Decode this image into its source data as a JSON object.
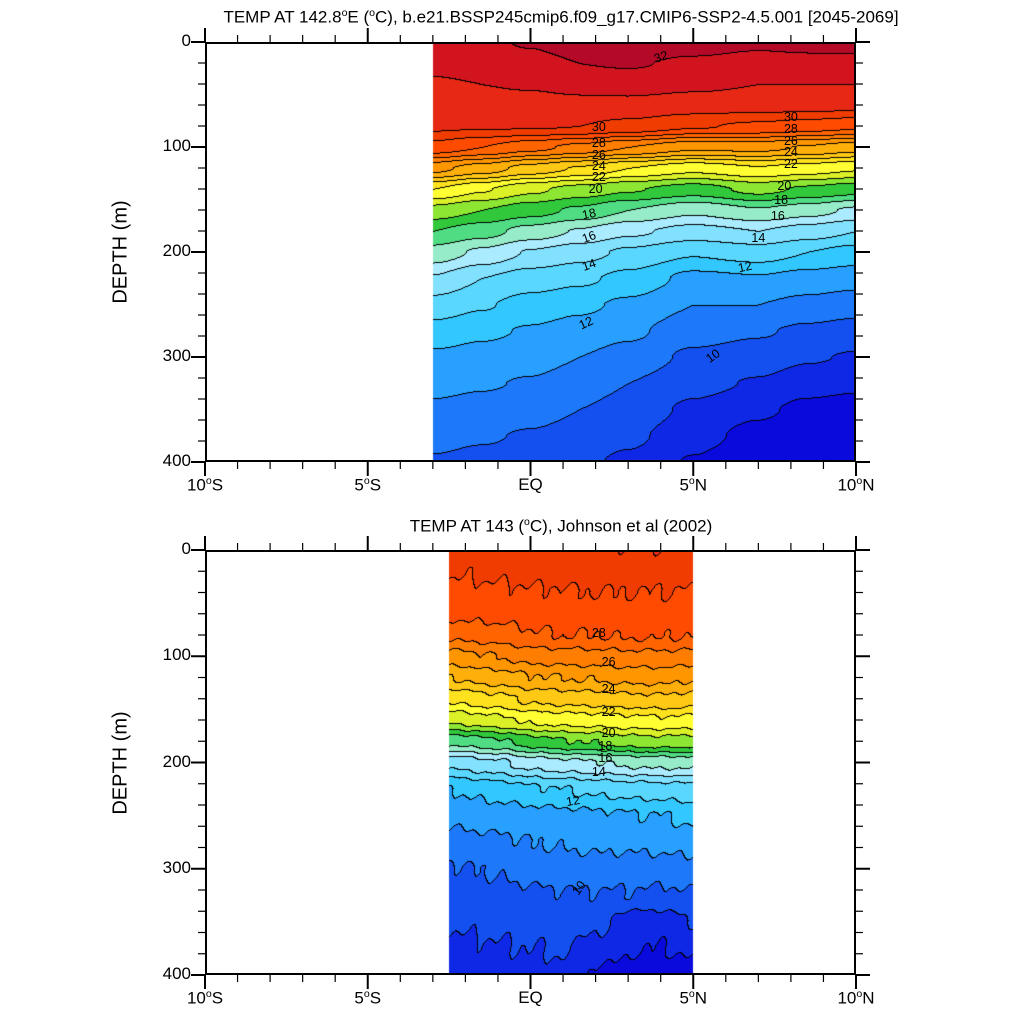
{
  "figure": {
    "background": "#FFFFFF"
  },
  "frame_color": "#000000",
  "contour_line_color": "#000000",
  "colormap": {
    "tmin": 7,
    "band_colors": [
      "#0A0ADC",
      "#0F28E6",
      "#1450F0",
      "#1E78FA",
      "#28A0FF",
      "#32C8FF",
      "#5AD7FF",
      "#82E1FF",
      "#AAEBFF",
      "#96EBC8",
      "#50DC82",
      "#32C83C",
      "#8CE632",
      "#DCF028",
      "#FFFF32",
      "#FFE11E",
      "#FFC814",
      "#FFAF0A",
      "#FF9600",
      "#FF7D00",
      "#FF6400",
      "#FF4B00",
      "#F03C00",
      "#E62814",
      "#D2141E",
      "#B40A28"
    ]
  },
  "chart_data": [
    {
      "type": "filled_contour",
      "title": "TEMP AT 142.8°E (°C), b.e21.BSSP245cmip6.f09_g17.CMIP6-SSP2-4.5.001 [2045-2069]",
      "y_axis_title": "DEPTH (m)",
      "x_axis": {
        "range": [
          -10,
          10
        ],
        "major_tick_values": [
          -10,
          -5,
          0,
          5,
          10
        ],
        "major_tick_labels": [
          "10°S",
          "5°S",
          "EQ",
          "5°N",
          "10°N"
        ],
        "minor_tick_step": 1
      },
      "y_axis": {
        "range": [
          0,
          400
        ],
        "inverted": true,
        "major_tick_values": [
          0,
          100,
          200,
          300,
          400
        ],
        "major_tick_labels": [
          "0",
          "100",
          "200",
          "300",
          "400"
        ],
        "minor_tick_step": 20
      },
      "contour_interval": 1,
      "field": {
        "lats": [
          -3,
          -1.5,
          0,
          1.5,
          3,
          5,
          7,
          8.5,
          10
        ],
        "depths": [
          0,
          20,
          40,
          60,
          80,
          100,
          120,
          140,
          160,
          180,
          200,
          225,
          250,
          275,
          300,
          325,
          350,
          375,
          400
        ],
        "temps": [
          [
            31.6,
            31.8,
            32.1,
            32.6,
            32.8,
            32.5,
            32.2,
            32.3,
            32.4
          ],
          [
            31.2,
            31.4,
            31.6,
            32.0,
            32.1,
            31.8,
            31.6,
            31.7,
            31.7
          ],
          [
            30.9,
            31.0,
            31.1,
            31.3,
            31.4,
            31.2,
            31.0,
            31.0,
            31.0
          ],
          [
            30.5,
            30.5,
            30.6,
            30.7,
            30.7,
            30.5,
            30.4,
            30.4,
            30.3
          ],
          [
            30.2,
            30.1,
            30.1,
            30.0,
            29.7,
            29.1,
            28.8,
            28.5,
            28.2
          ],
          [
            28.6,
            28.0,
            27.3,
            26.7,
            26.0,
            25.2,
            25.3,
            24.9,
            24.4
          ],
          [
            25.3,
            24.5,
            23.6,
            22.9,
            22.0,
            21.3,
            21.9,
            21.5,
            21.1
          ],
          [
            22.0,
            21.1,
            20.2,
            19.6,
            19.1,
            18.5,
            19.3,
            18.8,
            18.4
          ],
          [
            19.6,
            19.0,
            18.4,
            17.8,
            17.0,
            16.2,
            16.9,
            16.4,
            15.8
          ],
          [
            18.0,
            17.4,
            16.6,
            15.9,
            15.2,
            14.6,
            15.0,
            14.5,
            14.0
          ],
          [
            16.6,
            15.8,
            14.9,
            14.4,
            13.8,
            13.1,
            13.5,
            13.0,
            12.6
          ],
          [
            14.9,
            14.0,
            13.5,
            13.2,
            12.7,
            11.7,
            11.9,
            11.6,
            11.4
          ],
          [
            13.6,
            13.1,
            12.6,
            12.2,
            11.8,
            11.0,
            11.0,
            10.7,
            10.4
          ],
          [
            12.6,
            12.2,
            11.9,
            11.6,
            11.2,
            10.4,
            10.1,
            9.8,
            9.6
          ],
          [
            11.8,
            11.6,
            11.4,
            11.0,
            10.6,
            9.8,
            9.5,
            9.1,
            8.9
          ],
          [
            11.3,
            11.1,
            10.9,
            10.5,
            10.0,
            9.3,
            8.9,
            8.4,
            8.2
          ],
          [
            10.8,
            10.6,
            10.4,
            10.0,
            9.6,
            8.8,
            8.2,
            7.7,
            7.5
          ],
          [
            10.3,
            10.1,
            9.9,
            9.6,
            9.2,
            8.4,
            7.6,
            7.0,
            6.8
          ],
          [
            9.9,
            9.7,
            9.5,
            9.2,
            8.8,
            7.9,
            7.0,
            6.3,
            6.1
          ]
        ]
      },
      "contour_labels": [
        {
          "text": "32",
          "lat": 4.0,
          "depth": 14,
          "rot": -18
        },
        {
          "text": "30",
          "lat": 2.1,
          "depth": 81
        },
        {
          "text": "28",
          "lat": 2.1,
          "depth": 96
        },
        {
          "text": "26",
          "lat": 2.1,
          "depth": 108
        },
        {
          "text": "24",
          "lat": 2.1,
          "depth": 118
        },
        {
          "text": "22",
          "lat": 2.1,
          "depth": 129
        },
        {
          "text": "20",
          "lat": 2.0,
          "depth": 140
        },
        {
          "text": "18",
          "lat": 1.8,
          "depth": 164,
          "rot": -12
        },
        {
          "text": "16",
          "lat": 1.8,
          "depth": 186,
          "rot": -20
        },
        {
          "text": "14",
          "lat": 1.8,
          "depth": 212,
          "rot": -20
        },
        {
          "text": "12",
          "lat": 1.7,
          "depth": 268,
          "rot": -25
        },
        {
          "text": "10",
          "lat": 5.6,
          "depth": 299,
          "rot": -35
        },
        {
          "text": "30",
          "lat": 8.0,
          "depth": 71
        },
        {
          "text": "28",
          "lat": 8.0,
          "depth": 83
        },
        {
          "text": "26",
          "lat": 8.0,
          "depth": 94
        },
        {
          "text": "24",
          "lat": 8.0,
          "depth": 105
        },
        {
          "text": "22",
          "lat": 8.0,
          "depth": 116
        },
        {
          "text": "20",
          "lat": 7.8,
          "depth": 137
        },
        {
          "text": "18",
          "lat": 7.7,
          "depth": 150
        },
        {
          "text": "16",
          "lat": 7.6,
          "depth": 166
        },
        {
          "text": "14",
          "lat": 7.0,
          "depth": 187
        },
        {
          "text": "12",
          "lat": 6.6,
          "depth": 214,
          "rot": -12
        }
      ]
    },
    {
      "type": "filled_contour",
      "title": "TEMP AT 143 (°C), Johnson et al (2002)",
      "y_axis_title": "DEPTH (m)",
      "x_axis": {
        "range": [
          -10,
          10
        ],
        "major_tick_values": [
          -10,
          -5,
          0,
          5,
          10
        ],
        "major_tick_labels": [
          "10°S",
          "5°S",
          "EQ",
          "5°N",
          "10°N"
        ],
        "minor_tick_step": 1
      },
      "y_axis": {
        "range": [
          0,
          400
        ],
        "inverted": true,
        "major_tick_values": [
          0,
          100,
          200,
          300,
          400
        ],
        "major_tick_labels": [
          "0",
          "100",
          "200",
          "300",
          "400"
        ],
        "minor_tick_step": 20
      },
      "contour_interval": 1,
      "field": {
        "lats": [
          -2.5,
          -1,
          0,
          1,
          2,
          3,
          4,
          5
        ],
        "depths": [
          0,
          20,
          40,
          60,
          80,
          100,
          120,
          140,
          160,
          180,
          200,
          225,
          250,
          275,
          300,
          325,
          350,
          375,
          400
        ],
        "temps": [
          [
            29.6,
            29.7,
            29.8,
            29.8,
            29.9,
            29.9,
            29.9,
            29.8
          ],
          [
            29.1,
            29.2,
            29.3,
            29.4,
            29.4,
            29.4,
            29.4,
            29.4
          ],
          [
            28.7,
            28.8,
            28.9,
            28.9,
            29.0,
            29.0,
            29.0,
            28.9
          ],
          [
            28.2,
            28.3,
            28.4,
            28.5,
            28.5,
            28.5,
            28.5,
            28.5
          ],
          [
            27.2,
            27.5,
            27.9,
            28.0,
            28.0,
            28.1,
            28.1,
            28.0
          ],
          [
            25.6,
            26.0,
            26.4,
            26.5,
            26.6,
            26.7,
            26.7,
            26.6
          ],
          [
            24.0,
            24.5,
            24.9,
            25.0,
            25.1,
            25.3,
            25.3,
            25.1
          ],
          [
            22.2,
            22.7,
            23.2,
            23.4,
            23.5,
            23.7,
            23.8,
            23.6
          ],
          [
            20.2,
            20.7,
            21.2,
            21.4,
            21.5,
            21.7,
            21.8,
            21.7
          ],
          [
            17.2,
            17.8,
            18.5,
            18.9,
            19.1,
            19.5,
            19.6,
            19.5
          ],
          [
            14.3,
            14.8,
            15.4,
            15.7,
            15.9,
            16.2,
            16.3,
            16.3
          ],
          [
            12.0,
            12.4,
            12.8,
            13.0,
            13.2,
            13.4,
            13.5,
            13.6
          ],
          [
            11.3,
            11.5,
            11.6,
            11.7,
            11.8,
            11.9,
            12.0,
            12.3
          ],
          [
            10.6,
            10.8,
            11.0,
            11.1,
            11.2,
            11.2,
            11.3,
            11.4
          ],
          [
            9.9,
            10.1,
            10.4,
            10.5,
            10.6,
            10.5,
            10.5,
            10.6
          ],
          [
            9.5,
            9.7,
            9.8,
            9.9,
            9.9,
            9.9,
            9.8,
            9.9
          ],
          [
            9.1,
            9.3,
            9.4,
            9.5,
            9.3,
            8.4,
            8.4,
            9.0
          ],
          [
            8.7,
            8.9,
            9.0,
            9.1,
            8.6,
            8.1,
            8.0,
            8.2
          ],
          [
            8.3,
            8.5,
            8.6,
            8.7,
            7.9,
            7.4,
            7.3,
            7.5
          ]
        ]
      },
      "contour_labels": [
        {
          "text": "28",
          "lat": 2.1,
          "depth": 78
        },
        {
          "text": "26",
          "lat": 2.4,
          "depth": 105
        },
        {
          "text": "24",
          "lat": 2.4,
          "depth": 131
        },
        {
          "text": "22",
          "lat": 2.4,
          "depth": 152
        },
        {
          "text": "20",
          "lat": 2.4,
          "depth": 172
        },
        {
          "text": "18",
          "lat": 2.3,
          "depth": 184
        },
        {
          "text": "16",
          "lat": 2.3,
          "depth": 196
        },
        {
          "text": "14",
          "lat": 2.1,
          "depth": 209
        },
        {
          "text": "12",
          "lat": 1.3,
          "depth": 236,
          "rot": -10
        },
        {
          "text": "10",
          "lat": 1.5,
          "depth": 318,
          "rot": -55
        }
      ]
    }
  ]
}
